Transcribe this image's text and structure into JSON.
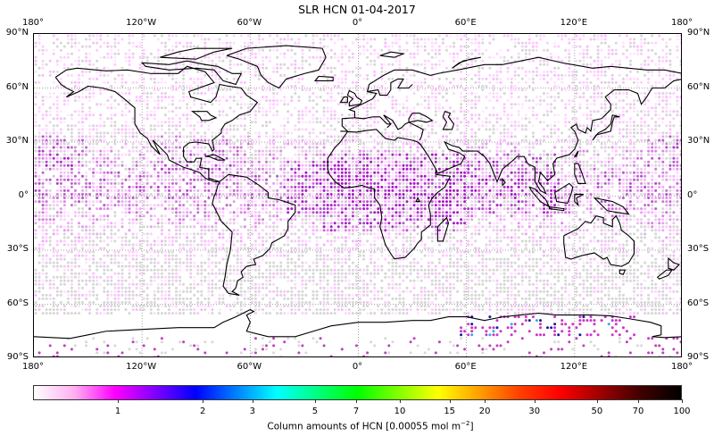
{
  "title": "SLR HCN 01-04-2017",
  "axes": {
    "lon_labels": [
      "180°",
      "120°W",
      "60°W",
      "0°",
      "60°E",
      "120°E",
      "180°"
    ],
    "lat_labels": [
      "90°N",
      "60°N",
      "30°N",
      "0°",
      "30°S",
      "60°S",
      "90°S"
    ]
  },
  "colorbar": {
    "ticks": [
      "1",
      "2",
      "3",
      "5",
      "7",
      "10",
      "15",
      "20",
      "30",
      "50",
      "70",
      "100"
    ],
    "label_prefix": "Column amounts of HCN [0.00055 mol m",
    "label_exp": "−2",
    "label_suffix": "]",
    "colors": [
      "#ffffff",
      "#ffb0f0",
      "#ff00ff",
      "#8000ff",
      "#0000ff",
      "#0080ff",
      "#00ffff",
      "#00ff80",
      "#00ff00",
      "#80ff00",
      "#ffff00",
      "#ffa000",
      "#ff4000",
      "#ff0000",
      "#a00000",
      "#400000",
      "#000000"
    ]
  },
  "chart_data": {
    "type": "heatmap",
    "title": "SLR HCN 01-04-2017",
    "projection": "plate carree",
    "xlim": [
      -180,
      180
    ],
    "ylim": [
      -90,
      90
    ],
    "xticks": [
      -180,
      -120,
      -60,
      0,
      60,
      120,
      180
    ],
    "yticks": [
      90,
      60,
      30,
      0,
      -30,
      -60,
      -90
    ],
    "grid": "dotted, every 60° lon / 30° lat",
    "colorbar": {
      "scale": "log",
      "range": [
        0.5,
        100
      ],
      "ticks": [
        1,
        2,
        3,
        5,
        7,
        10,
        15,
        20,
        30,
        50,
        70,
        100
      ],
      "label": "Column amounts of HCN [0.00055 mol m^-2]"
    },
    "observations": {
      "grid_spacing_deg": 2,
      "typical_range": "0.5–2 (white to magenta)",
      "enhanced_regions": [
        "tropical Africa",
        "tropical Atlantic",
        "Indian Ocean",
        "subtropical Pacific ~30°N",
        "tropical South America"
      ],
      "highest_values": "Antarctica 60°E–150°E (up to ~3–7, blue/cyan)",
      "missing_data": "gray dots, mostly southern ocean and subtropical bands"
    }
  }
}
